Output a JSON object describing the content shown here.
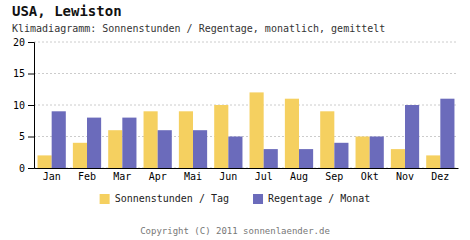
{
  "chart_data": {
    "type": "bar",
    "title": "USA, Lewiston",
    "subtitle": "Klimadiagramm: Sonnenstunden / Regentage, monatlich, gemittelt",
    "categories": [
      "Jan",
      "Feb",
      "Mar",
      "Apr",
      "Mai",
      "Jun",
      "Jul",
      "Aug",
      "Sep",
      "Okt",
      "Nov",
      "Dez"
    ],
    "series": [
      {
        "name": "Sonnenstunden / Tag",
        "color": "#F5D060",
        "values": [
          2,
          4,
          6,
          9,
          9,
          10,
          12,
          11,
          9,
          5,
          3,
          2
        ]
      },
      {
        "name": "Regentage / Monat",
        "color": "#6B6BBB",
        "values": [
          9,
          8,
          8,
          6,
          6,
          5,
          3,
          3,
          4,
          5,
          10,
          11
        ]
      }
    ],
    "ylim": [
      0,
      20
    ],
    "yticks": [
      0,
      5,
      10,
      15,
      20
    ],
    "grid": true,
    "legend": "bottom",
    "annotations": [
      "Copyright (C) 2011 sonnenlaender.de"
    ]
  }
}
